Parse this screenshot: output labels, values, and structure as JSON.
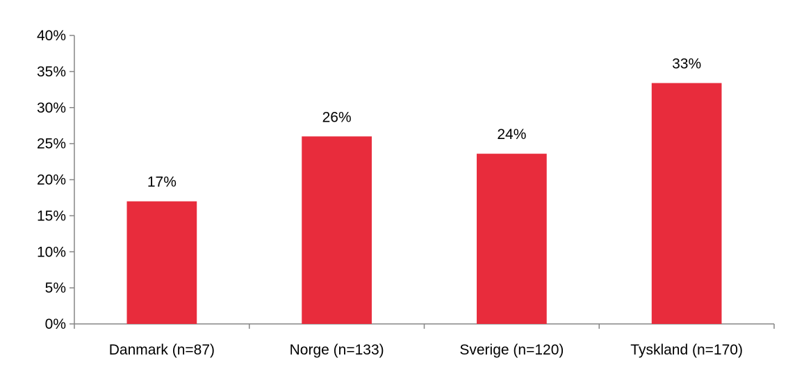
{
  "chart_data": {
    "type": "bar",
    "title": "",
    "xlabel": "",
    "ylabel": "",
    "categories": [
      "Danmark (n=87)",
      "Norge (n=133)",
      "Sverige (n=120)",
      "Tyskland (n=170)"
    ],
    "values": [
      17,
      26,
      23.6,
      33.4
    ],
    "data_labels": [
      "17%",
      "26%",
      "24%",
      "33%"
    ],
    "ylim": [
      0,
      40
    ],
    "yticks": [
      0,
      5,
      10,
      15,
      20,
      25,
      30,
      35,
      40
    ],
    "ytick_labels": [
      "0%",
      "5%",
      "10%",
      "15%",
      "20%",
      "25%",
      "30%",
      "35%",
      "40%"
    ],
    "bar_color": "#e82c3c",
    "grid": false,
    "legend": "none"
  }
}
